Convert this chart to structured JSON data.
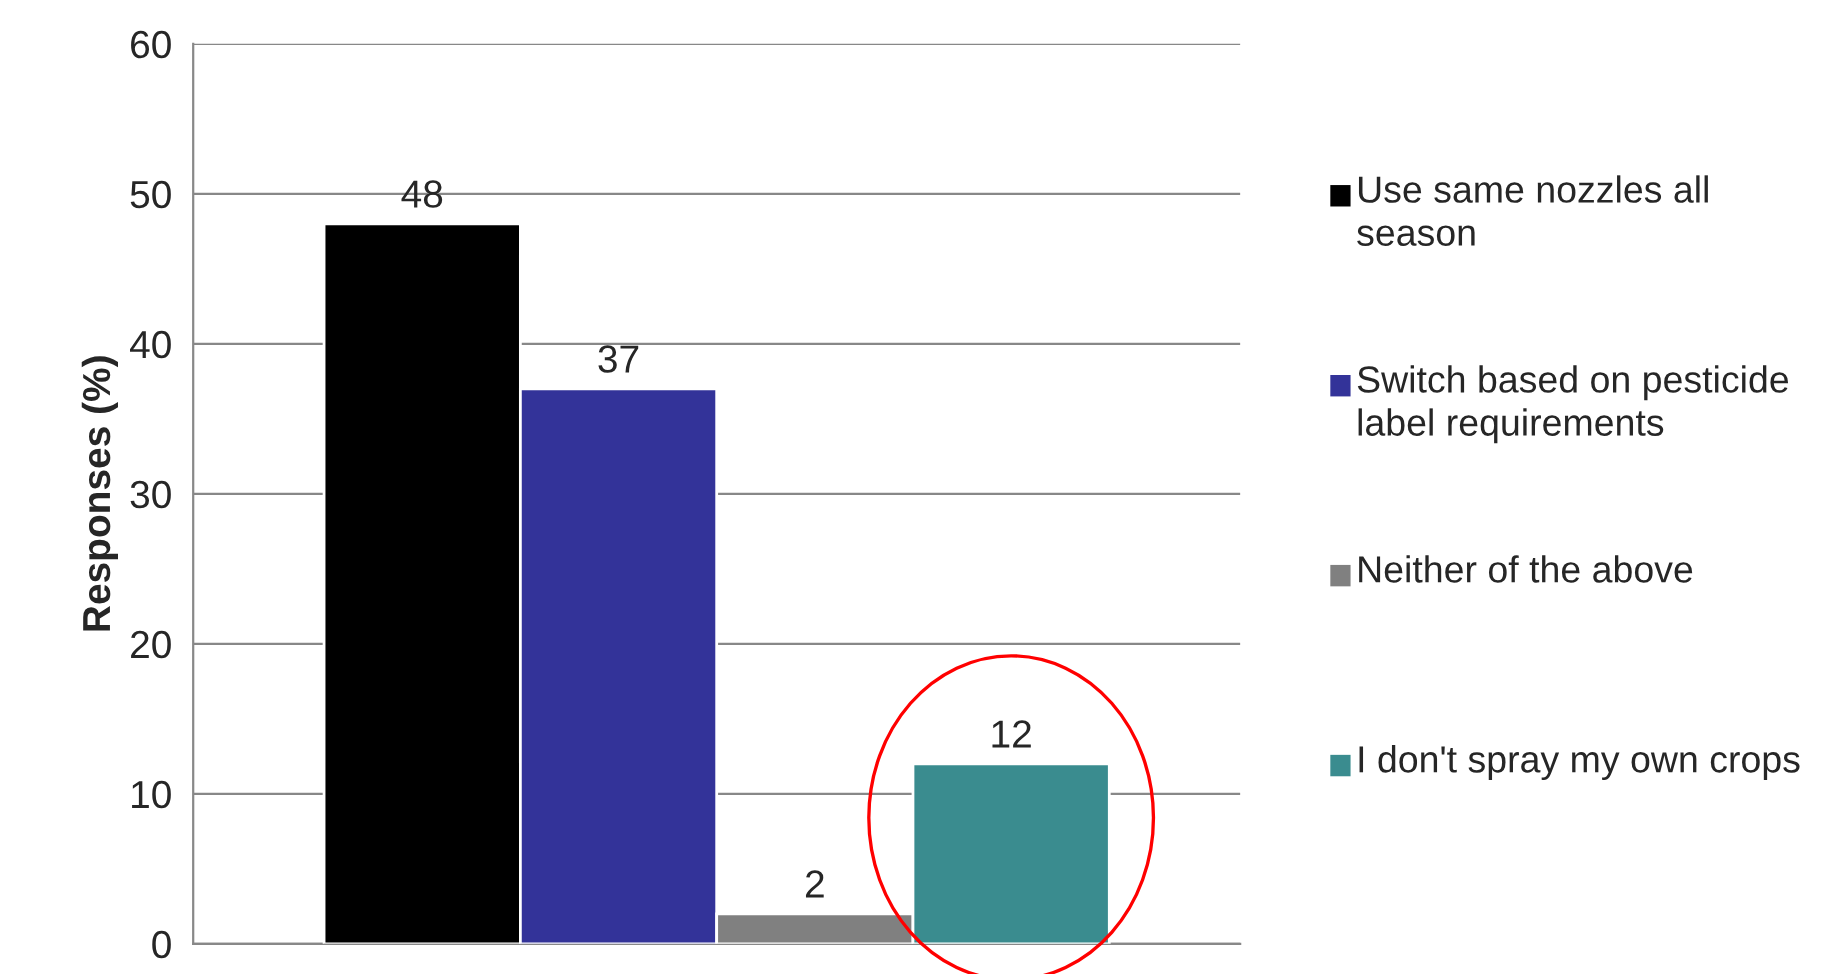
{
  "chart_data": {
    "type": "bar",
    "ylabel": "Responses (%)",
    "categories": [
      null
    ],
    "series": [
      {
        "name": "Use same nozzles all season",
        "color": "#000000",
        "values": [
          48
        ]
      },
      {
        "name": "Switch based on pesticide label requirements",
        "color": "#333399",
        "values": [
          37
        ]
      },
      {
        "name": "Neither of the above",
        "color": "#808080",
        "values": [
          2
        ]
      },
      {
        "name": "I don't spray my own crops",
        "color": "#3a8c8f",
        "values": [
          12
        ]
      }
    ],
    "ylim": [
      0,
      60
    ],
    "yticks": [
      0,
      10,
      20,
      30,
      40,
      50,
      60
    ],
    "grid": "y",
    "legend": "right",
    "data_labels": true
  }
}
